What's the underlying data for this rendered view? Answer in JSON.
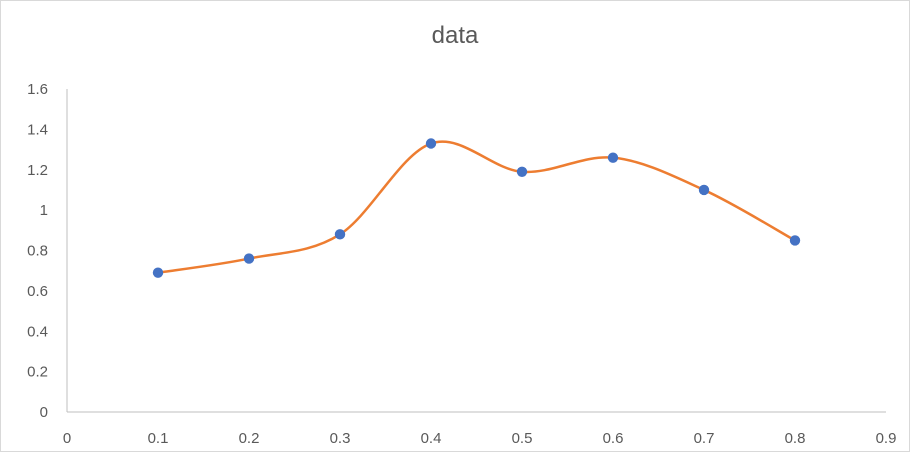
{
  "chart_data": {
    "type": "scatter",
    "title": "data",
    "xlabel": "",
    "ylabel": "",
    "xlim": [
      0,
      0.9
    ],
    "ylim": [
      0,
      1.6
    ],
    "x_ticks": [
      "0",
      "0.1",
      "0.2",
      "0.3",
      "0.4",
      "0.5",
      "0.6",
      "0.7",
      "0.8",
      "0.9"
    ],
    "y_ticks": [
      "0",
      "0.2",
      "0.4",
      "0.6",
      "0.8",
      "1",
      "1.2",
      "1.4",
      "1.6"
    ],
    "grid": false,
    "legend": "none",
    "series": [
      {
        "x": [
          0.1,
          0.2,
          0.3,
          0.4,
          0.5,
          0.6,
          0.7,
          0.8
        ],
        "y": [
          0.69,
          0.76,
          0.88,
          1.33,
          1.19,
          1.26,
          1.1,
          0.85
        ],
        "line_style": "smooth",
        "line_color": "#ED7D31",
        "marker_color": "#4472C4"
      }
    ]
  }
}
